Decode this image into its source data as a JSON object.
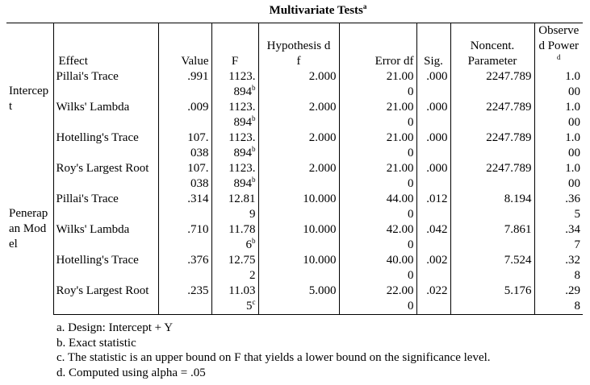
{
  "title": "Multivariate Tests",
  "title_note": "a",
  "columns": [
    "Effect",
    "Value",
    "F",
    "Hypothesis df",
    "Error df",
    "Sig.",
    "Noncent. Parameter",
    "Observed Power"
  ],
  "power_note": "d",
  "groups": [
    {
      "name": "Intercept",
      "rows": [
        {
          "effect": "Pillai's Trace",
          "value": ".991",
          "f": "1123.894",
          "f_note": "b",
          "hyp_df": "2.000",
          "error_df": "21.000",
          "sig": ".000",
          "noncent": "2247.789",
          "power": "1.000"
        },
        {
          "effect": "Wilks' Lambda",
          "value": ".009",
          "f": "1123.894",
          "f_note": "b",
          "hyp_df": "2.000",
          "error_df": "21.000",
          "sig": ".000",
          "noncent": "2247.789",
          "power": "1.000"
        },
        {
          "effect": "Hotelling's Trace",
          "value": "107.038",
          "f": "1123.894",
          "f_note": "b",
          "hyp_df": "2.000",
          "error_df": "21.000",
          "sig": ".000",
          "noncent": "2247.789",
          "power": "1.000"
        },
        {
          "effect": "Roy's Largest Root",
          "value": "107.038",
          "f": "1123.894",
          "f_note": "b",
          "hyp_df": "2.000",
          "error_df": "21.000",
          "sig": ".000",
          "noncent": "2247.789",
          "power": "1.000"
        }
      ]
    },
    {
      "name": "Penerapan Model",
      "rows": [
        {
          "effect": "Pillai's Trace",
          "value": ".314",
          "f": "12.819",
          "hyp_df": "10.000",
          "error_df": "44.000",
          "sig": ".012",
          "noncent": "8.194",
          "power": ".365"
        },
        {
          "effect": "Wilks' Lambda",
          "value": ".710",
          "f": "11.786",
          "f_note": "b",
          "hyp_df": "10.000",
          "error_df": "42.000",
          "sig": ".042",
          "noncent": "7.861",
          "power": ".347"
        },
        {
          "effect": "Hotelling's Trace",
          "value": ".376",
          "f": "12.752",
          "hyp_df": "10.000",
          "error_df": "40.000",
          "sig": ".002",
          "noncent": "7.524",
          "power": ".328"
        },
        {
          "effect": "Roy's Largest Root",
          "value": ".235",
          "f": "11.035",
          "f_note": "c",
          "hyp_df": "5.000",
          "error_df": "22.000",
          "sig": ".022",
          "noncent": "5.176",
          "power": ".298"
        }
      ]
    }
  ],
  "footnotes": [
    "a. Design: Intercept + Y",
    "b. Exact statistic",
    "c. The statistic is an upper bound on F that yields a lower bound on the significance level.",
    "d. Computed using alpha = .05"
  ]
}
